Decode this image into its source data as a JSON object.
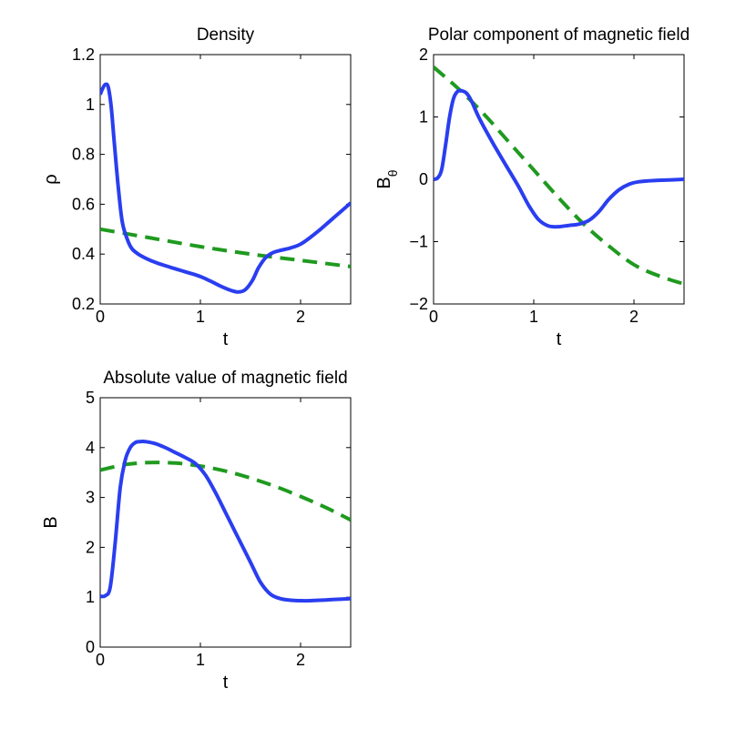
{
  "chart_data": [
    {
      "type": "line",
      "title": "Density",
      "xlabel": "t",
      "ylabel": "ρ",
      "ylabel_sub": "",
      "xlim": [
        0,
        2.5
      ],
      "ylim": [
        0.2,
        1.2
      ],
      "xticks": [
        0,
        1,
        2
      ],
      "yticks": [
        0.2,
        0.4,
        0.6,
        0.8,
        1,
        1.2
      ],
      "ytick_labels": [
        "0.2",
        "0.4",
        "0.6",
        "0.8",
        "1",
        "1.2"
      ],
      "grid": false,
      "series": [
        {
          "name": "solid",
          "color": "#2a3ef0",
          "style": "solid",
          "x": [
            0,
            0.02,
            0.05,
            0.08,
            0.11,
            0.14,
            0.18,
            0.22,
            0.27,
            0.32,
            0.4,
            0.5,
            0.6,
            0.7,
            0.8,
            0.9,
            1.0,
            1.1,
            1.2,
            1.3,
            1.38,
            1.45,
            1.52,
            1.58,
            1.65,
            1.72,
            1.8,
            1.9,
            2.0,
            2.1,
            2.2,
            2.3,
            2.4,
            2.5
          ],
          "y": [
            1.04,
            1.06,
            1.08,
            1.07,
            0.99,
            0.85,
            0.67,
            0.53,
            0.46,
            0.42,
            0.395,
            0.375,
            0.36,
            0.347,
            0.335,
            0.323,
            0.31,
            0.292,
            0.272,
            0.255,
            0.248,
            0.258,
            0.295,
            0.345,
            0.385,
            0.405,
            0.415,
            0.425,
            0.44,
            0.468,
            0.5,
            0.535,
            0.57,
            0.605
          ]
        },
        {
          "name": "dashed",
          "color": "#1f9a1f",
          "style": "dashed",
          "x": [
            0,
            0.5,
            1.0,
            1.5,
            2.0,
            2.5
          ],
          "y": [
            0.5,
            0.465,
            0.43,
            0.4,
            0.375,
            0.35
          ]
        }
      ]
    },
    {
      "type": "line",
      "title": "Polar component of magnetic field",
      "xlabel": "t",
      "ylabel": "B",
      "ylabel_sub": "θ",
      "xlim": [
        0,
        2.5
      ],
      "ylim": [
        -2,
        2
      ],
      "xticks": [
        0,
        1,
        2
      ],
      "yticks": [
        -2,
        -1,
        0,
        1,
        2
      ],
      "ytick_labels": [
        "−2",
        "−1",
        "0",
        "1",
        "2"
      ],
      "grid": false,
      "series": [
        {
          "name": "solid",
          "color": "#2a3ef0",
          "style": "solid",
          "x": [
            0,
            0.04,
            0.08,
            0.12,
            0.16,
            0.2,
            0.24,
            0.28,
            0.33,
            0.38,
            0.45,
            0.55,
            0.65,
            0.75,
            0.85,
            0.95,
            1.05,
            1.15,
            1.25,
            1.35,
            1.45,
            1.55,
            1.65,
            1.75,
            1.85,
            1.95,
            2.05,
            2.2,
            2.35,
            2.5
          ],
          "y": [
            0.0,
            0.02,
            0.15,
            0.55,
            1.0,
            1.3,
            1.41,
            1.42,
            1.38,
            1.25,
            1.0,
            0.7,
            0.42,
            0.15,
            -0.12,
            -0.42,
            -0.65,
            -0.75,
            -0.76,
            -0.74,
            -0.72,
            -0.66,
            -0.52,
            -0.32,
            -0.17,
            -0.08,
            -0.04,
            -0.02,
            -0.01,
            0.0
          ]
        },
        {
          "name": "dashed",
          "color": "#1f9a1f",
          "style": "dashed",
          "x": [
            0,
            0.25,
            0.5,
            0.75,
            1.0,
            1.25,
            1.5,
            1.75,
            2.0,
            2.25,
            2.5
          ],
          "y": [
            1.8,
            1.45,
            1.05,
            0.6,
            0.15,
            -0.3,
            -0.72,
            -1.07,
            -1.37,
            -1.55,
            -1.68
          ]
        }
      ]
    },
    {
      "type": "line",
      "title": "Absolute value of magnetic field",
      "xlabel": "t",
      "ylabel": "B",
      "ylabel_sub": "",
      "xlim": [
        0,
        2.5
      ],
      "ylim": [
        0,
        5
      ],
      "xticks": [
        0,
        1,
        2
      ],
      "yticks": [
        0,
        1,
        2,
        3,
        4,
        5
      ],
      "ytick_labels": [
        "0",
        "1",
        "2",
        "3",
        "4",
        "5"
      ],
      "grid": false,
      "series": [
        {
          "name": "solid",
          "color": "#2a3ef0",
          "style": "solid",
          "x": [
            0,
            0.05,
            0.1,
            0.15,
            0.2,
            0.25,
            0.3,
            0.35,
            0.4,
            0.45,
            0.55,
            0.65,
            0.75,
            0.85,
            0.95,
            1.05,
            1.15,
            1.25,
            1.35,
            1.5,
            1.6,
            1.7,
            1.8,
            1.9,
            2.0,
            2.1,
            2.2,
            2.3,
            2.4,
            2.5
          ],
          "y": [
            1.02,
            1.03,
            1.2,
            2.1,
            3.2,
            3.75,
            4.0,
            4.1,
            4.12,
            4.12,
            4.08,
            4.0,
            3.9,
            3.8,
            3.68,
            3.45,
            3.1,
            2.7,
            2.3,
            1.7,
            1.3,
            1.06,
            0.97,
            0.94,
            0.93,
            0.93,
            0.94,
            0.95,
            0.96,
            0.97
          ]
        },
        {
          "name": "dashed",
          "color": "#1f9a1f",
          "style": "dashed",
          "x": [
            0,
            0.25,
            0.5,
            0.75,
            1.0,
            1.25,
            1.5,
            1.75,
            2.0,
            2.25,
            2.5
          ],
          "y": [
            3.55,
            3.66,
            3.7,
            3.69,
            3.63,
            3.53,
            3.39,
            3.22,
            3.02,
            2.8,
            2.55
          ]
        }
      ]
    }
  ]
}
